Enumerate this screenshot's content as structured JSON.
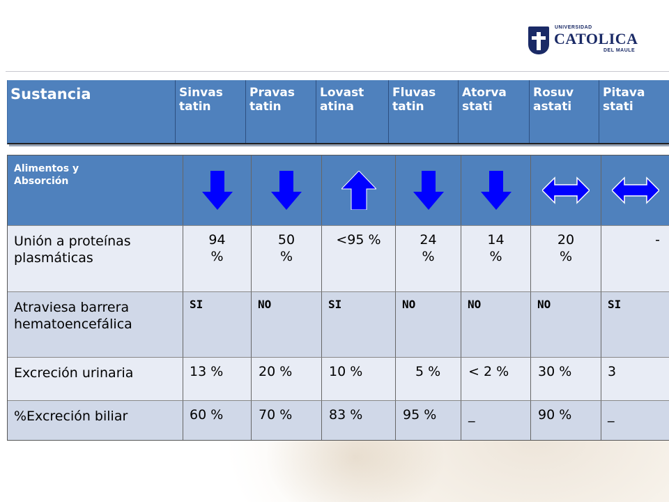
{
  "logo": {
    "line1": "UNIVERSIDAD",
    "line2": "CATOLICA",
    "line3": "DEL MAULE"
  },
  "header": {
    "title": "Sustancia",
    "drugs": [
      [
        "Sinvas",
        "tatin"
      ],
      [
        "Pravas",
        "tatin"
      ],
      [
        "Lovast",
        "atina"
      ],
      [
        "Fluvas",
        "tatin"
      ],
      [
        "Atorva",
        "stati"
      ],
      [
        "Rosuv",
        "astati"
      ],
      [
        "Pitava",
        "stati"
      ]
    ]
  },
  "rows": {
    "food": {
      "label_line1": "Alimentos y",
      "label_line2": "Absorción",
      "arrows": [
        "down-arrow-icon",
        "down-arrow-icon",
        "up-arrow-icon",
        "down-arrow-icon",
        "down-arrow-icon",
        "left-right-arrow-icon",
        "left-right-arrow-icon"
      ]
    },
    "protein": {
      "label_line1": "Unión a proteínas",
      "label_line2": "plasmáticas",
      "values": [
        [
          "94",
          "%"
        ],
        [
          "50",
          "%"
        ],
        [
          "<95 %",
          ""
        ],
        [
          "24",
          "%"
        ],
        [
          "14",
          "%"
        ],
        [
          "20",
          "%"
        ],
        [
          "-",
          ""
        ]
      ]
    },
    "barrier": {
      "label_line1": "Atraviesa barrera",
      "label_line2": "hematoencefálica",
      "values": [
        "SI",
        "NO",
        "SI",
        "NO",
        "NO",
        "NO",
        "SI"
      ]
    },
    "urinary": {
      "label": "Excreción urinaria",
      "values": [
        "13 %",
        "20 %",
        "10 %",
        "5 %",
        "< 2 %",
        "30 %",
        "3"
      ]
    },
    "biliary": {
      "label": "%Excreción biliar",
      "values": [
        "60 %",
        "70 %",
        "83 %",
        "95 %",
        "_",
        "90 %",
        "_"
      ]
    }
  },
  "colors": {
    "header_blue": "#4f81bd",
    "arrow_blue": "#0000ff",
    "row_light": "#e8ecf5",
    "row_mid": "#d0d8e8"
  }
}
